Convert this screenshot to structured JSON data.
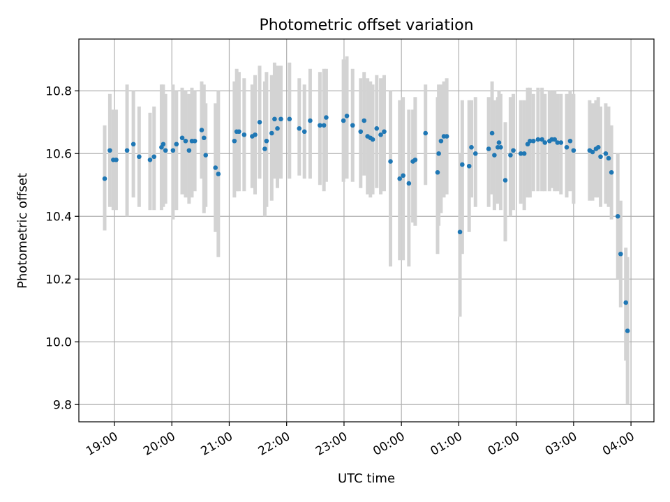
{
  "chart_data": {
    "type": "scatter",
    "title": "Photometric offset variation",
    "xlabel": "UTC time",
    "ylabel": "Photometric offset",
    "xlim": [
      18.38,
      28.4
    ],
    "ylim": [
      9.745,
      10.965
    ],
    "x_ticks": [
      19,
      20,
      21,
      22,
      23,
      24,
      25,
      26,
      27,
      28
    ],
    "x_tick_labels": [
      "19:00",
      "20:00",
      "21:00",
      "22:00",
      "23:00",
      "00:00",
      "01:00",
      "02:00",
      "03:00",
      "04:00"
    ],
    "y_ticks": [
      9.8,
      10.0,
      10.2,
      10.4,
      10.6,
      10.8
    ],
    "y_tick_labels": [
      "9.8",
      "10.0",
      "10.2",
      "10.4",
      "10.6",
      "10.8"
    ],
    "grid": true,
    "marker_color": "#1f77b4",
    "errorbar_color": "#d3d3d3",
    "x_unit": "hours since 00:00 of first night",
    "series": [
      {
        "name": "offset",
        "x": [
          18.83,
          18.92,
          18.98,
          19.03,
          19.22,
          19.33,
          19.43,
          19.62,
          19.69,
          19.82,
          19.85,
          19.89,
          20.02,
          20.08,
          20.18,
          20.24,
          20.3,
          20.35,
          20.4,
          20.52,
          20.56,
          20.59,
          20.76,
          20.81,
          21.09,
          21.13,
          21.17,
          21.26,
          21.4,
          21.45,
          21.53,
          21.62,
          21.65,
          21.74,
          21.79,
          21.84,
          21.9,
          22.05,
          22.22,
          22.31,
          22.41,
          22.58,
          22.65,
          22.69,
          22.99,
          23.05,
          23.15,
          23.29,
          23.35,
          23.41,
          23.46,
          23.5,
          23.57,
          23.64,
          23.7,
          23.81,
          23.97,
          24.03,
          24.13,
          24.2,
          24.24,
          24.42,
          24.63,
          24.65,
          24.69,
          24.74,
          24.79,
          25.02,
          25.06,
          25.18,
          25.22,
          25.29,
          25.52,
          25.58,
          25.62,
          25.68,
          25.7,
          25.73,
          25.81,
          25.9,
          25.95,
          26.08,
          26.14,
          26.2,
          26.24,
          26.3,
          26.38,
          26.45,
          26.5,
          26.58,
          26.62,
          26.67,
          26.72,
          26.78,
          26.88,
          26.94,
          27.0,
          27.28,
          27.33,
          27.39,
          27.43,
          27.47,
          27.56,
          27.61,
          27.66,
          27.77,
          27.82,
          27.91,
          27.94
        ],
        "y": [
          10.52,
          10.61,
          10.58,
          10.58,
          10.61,
          10.63,
          10.59,
          10.58,
          10.59,
          10.62,
          10.63,
          10.61,
          10.61,
          10.63,
          10.65,
          10.64,
          10.61,
          10.64,
          10.64,
          10.675,
          10.65,
          10.595,
          10.555,
          10.535,
          10.64,
          10.67,
          10.67,
          10.66,
          10.655,
          10.66,
          10.7,
          10.615,
          10.64,
          10.665,
          10.71,
          10.68,
          10.71,
          10.71,
          10.68,
          10.67,
          10.705,
          10.69,
          10.69,
          10.715,
          10.705,
          10.72,
          10.69,
          10.67,
          10.705,
          10.655,
          10.65,
          10.645,
          10.68,
          10.66,
          10.67,
          10.575,
          10.52,
          10.53,
          10.505,
          10.575,
          10.58,
          10.665,
          10.54,
          10.6,
          10.64,
          10.655,
          10.655,
          10.35,
          10.565,
          10.56,
          10.62,
          10.6,
          10.615,
          10.665,
          10.595,
          10.62,
          10.635,
          10.62,
          10.515,
          10.595,
          10.61,
          10.6,
          10.6,
          10.63,
          10.64,
          10.64,
          10.645,
          10.645,
          10.635,
          10.64,
          10.645,
          10.645,
          10.635,
          10.635,
          10.62,
          10.64,
          10.61,
          10.61,
          10.605,
          10.615,
          10.62,
          10.59,
          10.6,
          10.585,
          10.54,
          10.4,
          10.28,
          10.125,
          10.035
        ],
        "err_lo": [
          10.355,
          10.43,
          10.42,
          10.42,
          10.4,
          10.46,
          10.43,
          10.42,
          10.42,
          10.42,
          10.43,
          10.44,
          10.39,
          10.42,
          10.47,
          10.46,
          10.44,
          10.46,
          10.48,
          10.52,
          10.41,
          10.43,
          10.35,
          10.27,
          10.46,
          10.48,
          10.48,
          10.48,
          10.49,
          10.47,
          10.52,
          10.4,
          10.43,
          10.45,
          10.52,
          10.49,
          10.52,
          10.52,
          10.53,
          10.52,
          10.52,
          10.5,
          10.48,
          10.51,
          10.51,
          10.52,
          10.51,
          10.49,
          10.53,
          10.47,
          10.46,
          10.47,
          10.49,
          10.47,
          10.48,
          10.24,
          10.26,
          10.26,
          10.24,
          10.38,
          10.37,
          10.5,
          10.28,
          10.37,
          10.41,
          10.46,
          10.47,
          10.08,
          10.28,
          10.35,
          10.46,
          10.43,
          10.43,
          10.47,
          10.42,
          10.44,
          10.45,
          10.42,
          10.32,
          10.4,
          10.42,
          10.44,
          10.42,
          10.46,
          10.46,
          10.48,
          10.48,
          10.48,
          10.48,
          10.48,
          10.49,
          10.48,
          10.48,
          10.47,
          10.46,
          10.48,
          10.44,
          10.45,
          10.45,
          10.46,
          10.46,
          10.43,
          10.44,
          10.43,
          10.39,
          10.2,
          10.11,
          9.94,
          9.8
        ],
        "err_hi": [
          10.69,
          10.79,
          10.74,
          10.74,
          10.82,
          10.8,
          10.75,
          10.73,
          10.75,
          10.82,
          10.82,
          10.79,
          10.82,
          10.8,
          10.81,
          10.8,
          10.79,
          10.81,
          10.8,
          10.83,
          10.82,
          10.76,
          10.76,
          10.8,
          10.83,
          10.87,
          10.86,
          10.84,
          10.82,
          10.85,
          10.88,
          10.83,
          10.86,
          10.85,
          10.89,
          10.88,
          10.88,
          10.89,
          10.84,
          10.82,
          10.87,
          10.86,
          10.87,
          10.87,
          10.9,
          10.91,
          10.87,
          10.84,
          10.86,
          10.84,
          10.83,
          10.82,
          10.85,
          10.84,
          10.85,
          10.8,
          10.77,
          10.78,
          10.74,
          10.74,
          10.78,
          10.82,
          10.78,
          10.82,
          10.82,
          10.83,
          10.84,
          10.6,
          10.77,
          10.77,
          10.77,
          10.78,
          10.78,
          10.83,
          10.77,
          10.78,
          10.8,
          10.79,
          10.7,
          10.78,
          10.79,
          10.77,
          10.77,
          10.81,
          10.81,
          10.79,
          10.81,
          10.81,
          10.79,
          10.8,
          10.8,
          10.8,
          10.79,
          10.79,
          10.79,
          10.8,
          10.79,
          10.77,
          10.76,
          10.77,
          10.78,
          10.75,
          10.76,
          10.75,
          10.69,
          10.6,
          10.45,
          10.3,
          10.27
        ]
      }
    ]
  }
}
